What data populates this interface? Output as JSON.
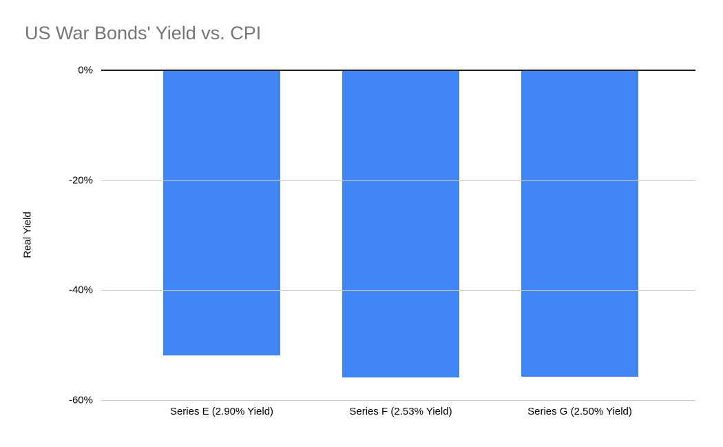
{
  "chart": {
    "title": "US War Bonds' Yield vs. CPI",
    "ylabel": "Real Yield"
  },
  "chart_data": {
    "type": "bar",
    "title": "US War Bonds' Yield vs. CPI",
    "xlabel": "",
    "ylabel": "Real Yield",
    "categories": [
      "Series E (2.90% Yield)",
      "Series F (2.53% Yield)",
      "Series G (2.50% Yield)"
    ],
    "values": [
      -51.8,
      -55.9,
      -55.8
    ],
    "ylim": [
      -60,
      0
    ],
    "yticks": [
      0,
      -20,
      -40,
      -60
    ],
    "ytick_labels": [
      "0%",
      "-20%",
      "-40%",
      "-60%"
    ],
    "grid": true,
    "legend": "none",
    "colors": {
      "bar": "#4285f4",
      "grid": "#cccccc",
      "zero_line": "#212121",
      "title": "#757575",
      "text": "#000000"
    }
  }
}
